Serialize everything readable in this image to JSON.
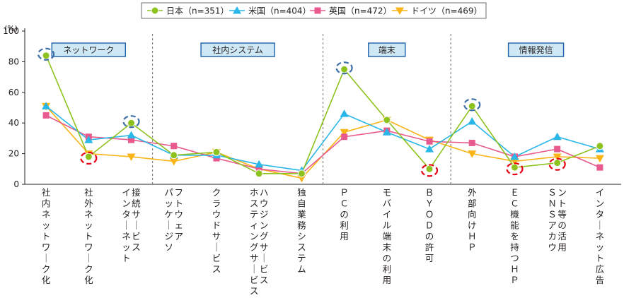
{
  "chart_data": {
    "type": "line",
    "y_unit": "(%)",
    "ylim": [
      0,
      100
    ],
    "yticks": [
      0,
      20,
      40,
      60,
      80,
      100
    ],
    "grid": false,
    "legend_position": "top-center",
    "categories": [
      "社内ネットワーク化",
      "社外ネットワーク化",
      "インターネット接続サービス",
      "パッケージソフトウェア",
      "クラウドサービス",
      "ホスティングサービス・ハウジングサービス",
      "独自業務システム",
      "ＰＣの利用",
      "モバイル端末の利用",
      "ＢＹＯＤの許可",
      "外部向けＨＰ",
      "ＥＣ機能を持つＨＰ",
      "ＳＮＳアカウント等の活用",
      "インターネット広告"
    ],
    "groups": [
      {
        "label": "ネットワーク",
        "from": 0,
        "to": 2
      },
      {
        "label": "社内システム",
        "from": 3,
        "to": 6
      },
      {
        "label": "端末",
        "from": 7,
        "to": 9
      },
      {
        "label": "情報発信",
        "from": 10,
        "to": 13
      }
    ],
    "series": [
      {
        "name": "日本（n=351）",
        "color": "#8dc21f",
        "marker": "circle",
        "values": [
          84,
          18,
          40,
          19,
          21,
          7,
          7,
          75,
          42,
          10,
          51,
          11,
          14,
          25
        ]
      },
      {
        "name": "米国（n=404）",
        "color": "#29b6e8",
        "marker": "triangle-up",
        "values": [
          51,
          29,
          32,
          19,
          19,
          13,
          9,
          46,
          34,
          23,
          41,
          18,
          31,
          23
        ]
      },
      {
        "name": "英国（n=472）",
        "color": "#e8598d",
        "marker": "square",
        "values": [
          45,
          31,
          29,
          25,
          17,
          10,
          7,
          31,
          35,
          28,
          27,
          18,
          23,
          11
        ]
      },
      {
        "name": "ドイツ（n=469）",
        "color": "#f9b418",
        "marker": "triangle-down",
        "values": [
          51,
          20,
          18,
          15,
          21,
          10,
          4,
          34,
          42,
          29,
          20,
          15,
          18,
          17
        ]
      }
    ],
    "highlight_max": {
      "series": "日本（n=351）",
      "color": "#3d6fa6",
      "indices": [
        0,
        2,
        7,
        10
      ]
    },
    "highlight_min": {
      "series": "日本（n=351）",
      "color": "#e60012",
      "indices": [
        1,
        9,
        11,
        12
      ]
    }
  }
}
